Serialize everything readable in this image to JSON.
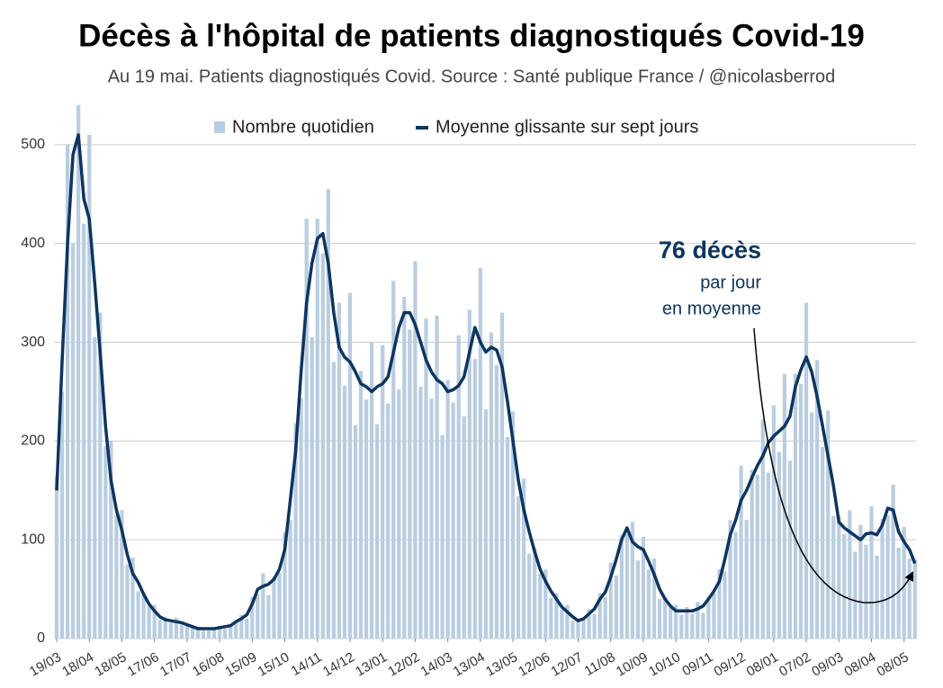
{
  "chart_data": {
    "type": "bar",
    "title": "Décès à l'hôpital de patients diagnostiqués Covid-19",
    "subtitle": "Au 19 mai. Patients diagnostiqués Covid. Source : Santé publique France / @nicolasberrod",
    "annotation": {
      "headline": "76 décès",
      "line1": "par jour",
      "line2": "en moyenne"
    },
    "xlim": [
      0,
      791
    ],
    "xticks": [
      {
        "value": 0,
        "label": "19/03"
      },
      {
        "value": 30,
        "label": "18/04"
      },
      {
        "value": 60,
        "label": "18/05"
      },
      {
        "value": 90,
        "label": "17/06"
      },
      {
        "value": 120,
        "label": "17/07"
      },
      {
        "value": 150,
        "label": "16/08"
      },
      {
        "value": 180,
        "label": "15/09"
      },
      {
        "value": 210,
        "label": "15/10"
      },
      {
        "value": 240,
        "label": "14/11"
      },
      {
        "value": 270,
        "label": "14/12"
      },
      {
        "value": 300,
        "label": "13/01"
      },
      {
        "value": 330,
        "label": "12/02"
      },
      {
        "value": 360,
        "label": "14/03"
      },
      {
        "value": 390,
        "label": "13/04"
      },
      {
        "value": 420,
        "label": "13/05"
      },
      {
        "value": 450,
        "label": "12/06"
      },
      {
        "value": 480,
        "label": "12/07"
      },
      {
        "value": 510,
        "label": "11/08"
      },
      {
        "value": 540,
        "label": "10/09"
      },
      {
        "value": 570,
        "label": "10/10"
      },
      {
        "value": 600,
        "label": "09/11"
      },
      {
        "value": 630,
        "label": "09/12"
      },
      {
        "value": 660,
        "label": "08/01"
      },
      {
        "value": 690,
        "label": "07/02"
      },
      {
        "value": 720,
        "label": "09/03"
      },
      {
        "value": 750,
        "label": "08/04"
      },
      {
        "value": 780,
        "label": "08/05"
      }
    ],
    "ylim": [
      0,
      550
    ],
    "yticks": [
      0,
      100,
      200,
      300,
      400,
      500
    ],
    "grid": true,
    "legend": "top",
    "x": [
      0,
      5,
      10,
      15,
      20,
      25,
      30,
      35,
      40,
      45,
      50,
      55,
      60,
      65,
      70,
      75,
      80,
      85,
      90,
      95,
      100,
      105,
      110,
      115,
      120,
      125,
      130,
      135,
      140,
      145,
      150,
      155,
      160,
      165,
      170,
      175,
      180,
      185,
      190,
      195,
      200,
      205,
      210,
      215,
      220,
      225,
      230,
      235,
      240,
      245,
      250,
      255,
      260,
      265,
      270,
      275,
      280,
      285,
      290,
      295,
      300,
      305,
      310,
      315,
      320,
      325,
      330,
      335,
      340,
      345,
      350,
      355,
      360,
      365,
      370,
      375,
      380,
      385,
      390,
      395,
      400,
      405,
      410,
      415,
      420,
      425,
      430,
      435,
      440,
      445,
      450,
      455,
      460,
      465,
      470,
      475,
      480,
      485,
      490,
      495,
      500,
      505,
      510,
      515,
      520,
      525,
      530,
      535,
      540,
      545,
      550,
      555,
      560,
      565,
      570,
      575,
      580,
      585,
      590,
      595,
      600,
      605,
      610,
      615,
      620,
      625,
      630,
      635,
      640,
      645,
      650,
      655,
      660,
      665,
      670,
      675,
      680,
      685,
      690,
      695,
      700,
      705,
      710,
      715,
      720,
      725,
      730,
      735,
      740,
      745,
      750,
      755,
      760,
      765,
      770,
      775,
      780,
      785,
      790
    ],
    "series": [
      {
        "name": "Nombre quotidien",
        "type": "bar",
        "color": "#b9cde1",
        "values": [
          165,
          250,
          500,
          400,
          540,
          420,
          510,
          305,
          330,
          195,
          200,
          125,
          130,
          75,
          82,
          48,
          47,
          33,
          34,
          19,
          22,
          16,
          21,
          14,
          15,
          11,
          12,
          8,
          11,
          9,
          13,
          10,
          14,
          16,
          24,
          20,
          42,
          45,
          66,
          44,
          63,
          66,
          108,
          120,
          218,
          243,
          425,
          305,
          425,
          390,
          455,
          280,
          340,
          256,
          350,
          216,
          271,
          242,
          300,
          217,
          297,
          238,
          362,
          252,
          346,
          313,
          382,
          255,
          324,
          243,
          327,
          206,
          262,
          239,
          307,
          225,
          333,
          283,
          375,
          232,
          310,
          277,
          330,
          204,
          230,
          144,
          162,
          86,
          92,
          66,
          70,
          41,
          46,
          29,
          34,
          18,
          19,
          19,
          30,
          25,
          46,
          42,
          77,
          64,
          105,
          106,
          118,
          79,
          103,
          70,
          81,
          40,
          42,
          31,
          34,
          24,
          32,
          25,
          37,
          26,
          42,
          46,
          70,
          68,
          120,
          108,
          175,
          120,
          171,
          166,
          222,
          168,
          236,
          189,
          268,
          180,
          268,
          258,
          340,
          229,
          282,
          194,
          231,
          124,
          124,
          106,
          130,
          88,
          115,
          95,
          134,
          84,
          121,
          125,
          156,
          92,
          113,
          81,
          80
        ]
      },
      {
        "name": "Moyenne glissante sur sept jours",
        "type": "line",
        "color": "#0d3560",
        "values": [
          150,
          280,
          400,
          490,
          510,
          445,
          425,
          360,
          290,
          215,
          160,
          130,
          110,
          85,
          66,
          57,
          45,
          35,
          28,
          22,
          19,
          18,
          17,
          16,
          14,
          12,
          10,
          10,
          10,
          10,
          11,
          12,
          13,
          17,
          20,
          24,
          35,
          50,
          53,
          55,
          60,
          70,
          90,
          140,
          190,
          270,
          340,
          380,
          405,
          410,
          380,
          330,
          295,
          285,
          280,
          270,
          258,
          255,
          250,
          255,
          258,
          265,
          290,
          315,
          330,
          330,
          318,
          300,
          282,
          270,
          262,
          258,
          250,
          252,
          256,
          265,
          290,
          315,
          300,
          290,
          295,
          292,
          275,
          240,
          200,
          160,
          130,
          108,
          88,
          70,
          58,
          48,
          40,
          32,
          27,
          22,
          18,
          20,
          25,
          30,
          40,
          47,
          62,
          80,
          100,
          112,
          98,
          93,
          90,
          78,
          65,
          50,
          40,
          33,
          28,
          28,
          28,
          28,
          30,
          33,
          40,
          48,
          58,
          80,
          105,
          120,
          140,
          150,
          163,
          175,
          185,
          198,
          205,
          210,
          215,
          225,
          255,
          272,
          285,
          270,
          245,
          215,
          185,
          155,
          118,
          112,
          108,
          104,
          100,
          106,
          107,
          105,
          115,
          132,
          130,
          108,
          98,
          90,
          76
        ]
      }
    ]
  }
}
